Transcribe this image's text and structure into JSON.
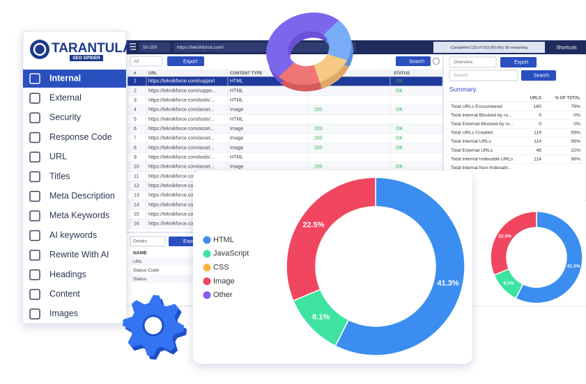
{
  "sidebar": {
    "logo": {
      "title": "TARANTULA",
      "subtitle": "SEO SPIDER"
    },
    "items": [
      "Internal",
      "External",
      "Security",
      "Response Code",
      "URL",
      "Titles",
      "Meta Description",
      "Meta Keywords",
      "AI keywords",
      "Rewrite With AI",
      "Headings",
      "Content",
      "Images"
    ]
  },
  "toolbar": {
    "range": "50-200",
    "url": "https://teknikforce.com/",
    "progress": "Completed 123 of 203 (60.6%) 80 remaining",
    "shortcuts": "Shortcuts"
  },
  "main_table": {
    "filter": "All",
    "export": "Export",
    "search": "Search",
    "columns": [
      "#",
      "URL",
      "CONTENT TYPE",
      "STATUS"
    ],
    "rows": [
      {
        "n": 1,
        "url": "https://teknikforce.com/support",
        "type": "HTML",
        "status": "OK"
      },
      {
        "n": 2,
        "url": "https://teknikforce.com/suppo...",
        "type": "HTML",
        "status": "OK"
      },
      {
        "n": 3,
        "url": "https://teknikforce.com/tools/...",
        "type": "HTML"
      },
      {
        "n": 4,
        "url": "https://teknikforce.com/asset...",
        "type": "Image",
        "code": "200",
        "status": "OK"
      },
      {
        "n": 5,
        "url": "https://teknikforce.com/tools/...",
        "type": "HTML"
      },
      {
        "n": 6,
        "url": "https://teknikforce.com/asset...",
        "type": "Image",
        "code": "200",
        "status": "OK"
      },
      {
        "n": 7,
        "url": "https://teknikforce.com/asset...",
        "type": "Image",
        "code": "200",
        "status": "OK"
      },
      {
        "n": 8,
        "url": "https://teknikforce.com/asset...",
        "type": "Image",
        "code": "200",
        "status": "OK"
      },
      {
        "n": 9,
        "url": "https://teknikforce.com/tools/...",
        "type": "HTML"
      },
      {
        "n": 10,
        "url": "https://teknikforce.com/asset...",
        "type": "Image",
        "code": "200",
        "status": "OK"
      },
      {
        "n": 11,
        "url": "https://teknikforce.com/"
      },
      {
        "n": 12,
        "url": "https://teknikforce.com/"
      },
      {
        "n": 13,
        "url": "https://teknikforce.com/"
      },
      {
        "n": 14,
        "url": "https://teknikforce.com/"
      },
      {
        "n": 15,
        "url": "https://teknikforce.com/"
      },
      {
        "n": 16,
        "url": "https://teknikforce.com/"
      }
    ]
  },
  "details": {
    "dropdown": "Details",
    "export": "Export",
    "rows": [
      "NAME",
      "URL",
      "Status Code",
      "Status"
    ]
  },
  "overview": {
    "dropdown": "Overview",
    "export": "Export",
    "search_placeholder": "Search",
    "search": "Search",
    "heading": "Summary",
    "columns": [
      "URLS",
      "% OF TOTAL"
    ],
    "rows": [
      {
        "label": "Total URLs Encountered",
        "urls": "160",
        "pct": "79%"
      },
      {
        "label": "Total Internal Blocked by ro...",
        "urls": "0",
        "pct": "0%"
      },
      {
        "label": "Total External Blocked by ro...",
        "urls": "0",
        "pct": "0%"
      },
      {
        "label": "Total URLs Crawled",
        "urls": "119",
        "pct": "59%"
      },
      {
        "label": "Total Internal URLs",
        "urls": "114",
        "pct": "56%"
      },
      {
        "label": "Total External URLs",
        "urls": "45",
        "pct": "22%"
      },
      {
        "label": "Total Internal Indexable URLs",
        "urls": "114",
        "pct": "56%"
      },
      {
        "label": "Total Internal Non-Indexabl..."
      }
    ]
  },
  "chart_data": {
    "type": "donut",
    "categories": [
      "HTML",
      "JavaScript",
      "CSS",
      "Image",
      "Other"
    ],
    "values": [
      41.3,
      8.1,
      0,
      22.5,
      0
    ],
    "value_labels": [
      "41.3%",
      "8.1%",
      null,
      "22.5%",
      null
    ],
    "colors": [
      "#3b8ef0",
      "#3fe3a1",
      "#f6b440",
      "#f1465f",
      "#8a5cf2"
    ]
  }
}
